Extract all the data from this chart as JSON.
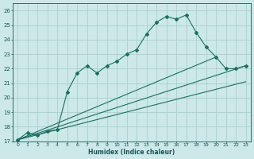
{
  "xlabel": "Humidex (Indice chaleur)",
  "xlim": [
    -0.5,
    23.5
  ],
  "ylim": [
    17,
    26.5
  ],
  "yticks": [
    17,
    18,
    19,
    20,
    21,
    22,
    23,
    24,
    25,
    26
  ],
  "xticks": [
    0,
    1,
    2,
    3,
    4,
    5,
    6,
    7,
    8,
    9,
    10,
    11,
    12,
    13,
    14,
    15,
    16,
    17,
    18,
    19,
    20,
    21,
    22,
    23
  ],
  "background_color": "#cce8e8",
  "grid_color": "#aacfcf",
  "line_color": "#1a7060",
  "curve_x": [
    0,
    1,
    2,
    3,
    4,
    5,
    6,
    7,
    8,
    9,
    10,
    11,
    12,
    13,
    14,
    15,
    16,
    17,
    18,
    19,
    20,
    21,
    22,
    23
  ],
  "curve_y": [
    17.1,
    17.6,
    17.4,
    17.7,
    17.8,
    20.4,
    21.7,
    22.2,
    21.7,
    22.2,
    22.5,
    23.0,
    23.3,
    24.4,
    25.2,
    25.6,
    25.4,
    25.7,
    24.5,
    23.5,
    22.8,
    22.0,
    22.0,
    22.2
  ],
  "straight_lines": [
    {
      "x": [
        0,
        23
      ],
      "y": [
        17.1,
        22.2
      ]
    },
    {
      "x": [
        0,
        23
      ],
      "y": [
        17.1,
        21.1
      ]
    },
    {
      "x": [
        0,
        20
      ],
      "y": [
        17.1,
        22.8
      ]
    }
  ]
}
